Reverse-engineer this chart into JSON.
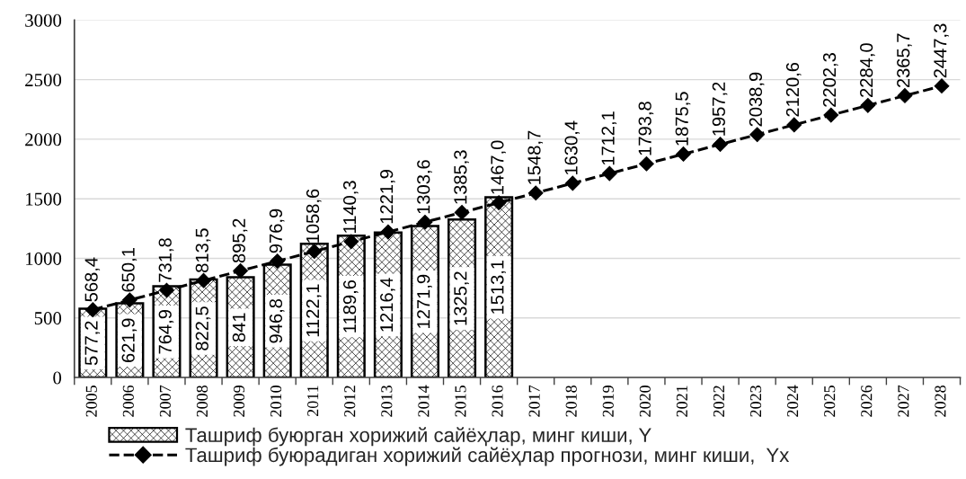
{
  "chart_data": {
    "type": "bar",
    "categories": [
      "2005",
      "2006",
      "2007",
      "2008",
      "2009",
      "2010",
      "2011",
      "2012",
      "2013",
      "2014",
      "2015",
      "2016",
      "2017",
      "2018",
      "2019",
      "2020",
      "2021",
      "2022",
      "2023",
      "2024",
      "2025",
      "2026",
      "2027",
      "2028"
    ],
    "series": [
      {
        "name": "Ташриф буюрган хорижий сайёҳлар, минг киши, Y",
        "color": "#000000",
        "values": [
          577.2,
          621.9,
          764.9,
          822.5,
          841,
          946.8,
          1122.1,
          1189.6,
          1216.4,
          1271.9,
          1325.2,
          1513.1,
          null,
          null,
          null,
          null,
          null,
          null,
          null,
          null,
          null,
          null,
          null,
          null
        ],
        "value_labels": [
          "577,2",
          "621,9",
          "764,9",
          "822,5",
          "841",
          "946,8",
          "1122,1",
          "1189,6",
          "1216,4",
          "1271,9",
          "1325,2",
          "1513,1",
          null,
          null,
          null,
          null,
          null,
          null,
          null,
          null,
          null,
          null,
          null,
          null
        ]
      },
      {
        "name": "Ташриф буюрадиган хорижий сайёҳлар прогнози, минг киши,  Yx",
        "type": "line",
        "color": "#000000",
        "values": [
          568.4,
          650.1,
          731.8,
          813.5,
          895.2,
          976.9,
          1058.6,
          1140.3,
          1221.9,
          1303.6,
          1385.3,
          1467.0,
          1548.7,
          1630.4,
          1712.1,
          1793.8,
          1875.5,
          1957.2,
          2038.9,
          2120.6,
          2202.3,
          2284.0,
          2365.7,
          2447.3
        ],
        "value_labels": [
          "568,4",
          "650,1",
          "731,8",
          "813,5",
          "895,2",
          "976,9",
          "1058,6",
          "1140,3",
          "1221,9",
          "1303,6",
          "1385,3",
          "1467,0",
          "1548,7",
          "1630,4",
          "1712,1",
          "1793,8",
          "1875,5",
          "1957,2",
          "2038,9",
          "2120,6",
          "2202,3",
          "2284,0",
          "2365,7",
          "2447,3"
        ]
      }
    ],
    "ylim": [
      0,
      3000
    ],
    "yticks": [
      0,
      500,
      1000,
      1500,
      2000,
      2500,
      3000
    ],
    "grid": "y",
    "legend": "bottom",
    "marker": "diamond",
    "line_style": "dashed"
  }
}
